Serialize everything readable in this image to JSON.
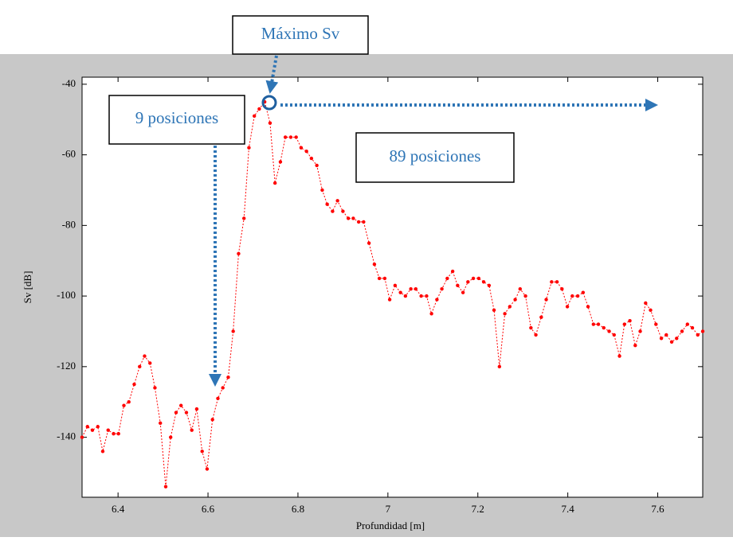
{
  "chart_data": {
    "type": "line",
    "xlabel": "Profundidad [m]",
    "ylabel": "Sv [dB]",
    "annotations": [
      "Máximo Sv",
      "9 posiciones",
      "89 posiciones"
    ],
    "x": [
      6.32,
      6.332,
      6.343,
      6.355,
      6.366,
      6.378,
      6.39,
      6.401,
      6.413,
      6.424,
      6.436,
      6.448,
      6.459,
      6.471,
      6.482,
      6.494,
      6.506,
      6.517,
      6.529,
      6.54,
      6.552,
      6.564,
      6.575,
      6.587,
      6.598,
      6.61,
      6.622,
      6.633,
      6.645,
      6.656,
      6.668,
      6.68,
      6.691,
      6.703,
      6.714,
      6.726,
      6.738,
      6.749,
      6.761,
      6.772,
      6.784,
      6.796,
      6.807,
      6.819,
      6.83,
      6.842,
      6.854,
      6.865,
      6.877,
      6.888,
      6.9,
      6.912,
      6.923,
      6.935,
      6.946,
      6.958,
      6.97,
      6.981,
      6.993,
      7.004,
      7.016,
      7.028,
      7.039,
      7.051,
      7.062,
      7.074,
      7.086,
      7.097,
      7.109,
      7.12,
      7.132,
      7.144,
      7.155,
      7.167,
      7.178,
      7.19,
      7.202,
      7.213,
      7.225,
      7.236,
      7.248,
      7.26,
      7.271,
      7.283,
      7.294,
      7.306,
      7.318,
      7.329,
      7.341,
      7.352,
      7.364,
      7.376,
      7.387,
      7.399,
      7.41,
      7.422,
      7.434,
      7.445,
      7.457,
      7.468,
      7.48,
      7.492,
      7.503,
      7.515,
      7.526,
      7.538,
      7.55,
      7.561,
      7.573,
      7.584,
      7.596,
      7.608,
      7.619,
      7.631,
      7.642,
      7.654,
      7.666,
      7.677,
      7.689,
      7.7
    ],
    "series": [
      {
        "color": "#ff0000",
        "values": [
          -140,
          -137,
          -138,
          -137,
          -144,
          -138,
          -139,
          -139,
          -131,
          -130,
          -125,
          -120,
          -117,
          -119,
          -126,
          -136,
          -154,
          -140,
          -133,
          -131,
          -133,
          -138,
          -132,
          -144,
          -149,
          -135,
          -129,
          -126,
          -123,
          -110,
          -88,
          -78,
          -58,
          -49,
          -47,
          -45,
          -51,
          -68,
          -62,
          -55,
          -55,
          -55,
          -58,
          -59,
          -61,
          -63,
          -70,
          -74,
          -76,
          -73,
          -76,
          -78,
          -78,
          -79,
          -79,
          -85,
          -91,
          -95,
          -95,
          -101,
          -97,
          -99,
          -100,
          -98,
          -98,
          -100,
          -100,
          -105,
          -101,
          -98,
          -95,
          -93,
          -97,
          -99,
          -96,
          -95,
          -95,
          -96,
          -97,
          -104,
          -120,
          -105,
          -103,
          -101,
          -98,
          -100,
          -109,
          -111,
          -106,
          -101,
          -96,
          -96,
          -98,
          -103,
          -100,
          -100,
          -99,
          -103,
          -108,
          -108,
          -109,
          -110,
          -111,
          -117,
          -108,
          -107,
          -114,
          -110,
          -102,
          -104,
          -108,
          -112,
          -111,
          -113,
          -112,
          -110,
          -108,
          -109,
          -111,
          -110
        ]
      }
    ],
    "xlim": [
      6.32,
      7.7
    ],
    "ylim": [
      -157,
      -38
    ],
    "xticks": [
      6.4,
      6.6,
      6.8,
      7,
      7.2,
      7.4,
      7.6
    ],
    "yticks": [
      -140,
      -120,
      -100,
      -80,
      -60,
      -40
    ],
    "grid": false
  }
}
